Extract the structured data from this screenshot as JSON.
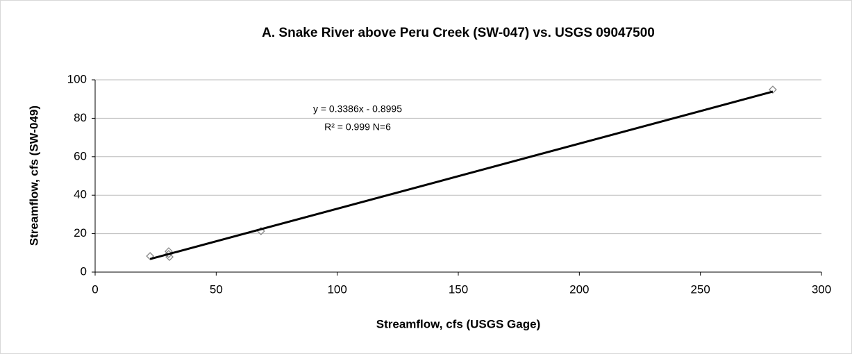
{
  "chart_data": {
    "type": "scatter",
    "title": "A.  Snake River above Peru Creek (SW-047) vs. USGS 09047500",
    "x_label": "Streamflow, cfs (USGS Gage)",
    "y_label": "Streamflow, cfs (SW-049)",
    "series": [
      {
        "name": "SW-049",
        "color": "#888888",
        "x": [
          22.7,
          30.4,
          30.7,
          30.4,
          68.5,
          279.9
        ],
        "values": [
          8.3,
          10.8,
          7.9,
          9.4,
          21.3,
          94.9
        ]
      }
    ],
    "trendline": {
      "slope": 0.3386,
      "intercept": -0.8995,
      "color": "#000000",
      "equation": "y = 0.3386x - 0.8995",
      "r2_label": "R² = 0.999  N=6"
    },
    "xlim": [
      0,
      300
    ],
    "xticks": [
      0,
      50,
      100,
      150,
      200,
      250,
      300
    ],
    "ylim": [
      0,
      100
    ],
    "yticks": [
      0,
      20,
      40,
      60,
      80,
      100
    ],
    "grid": true
  }
}
